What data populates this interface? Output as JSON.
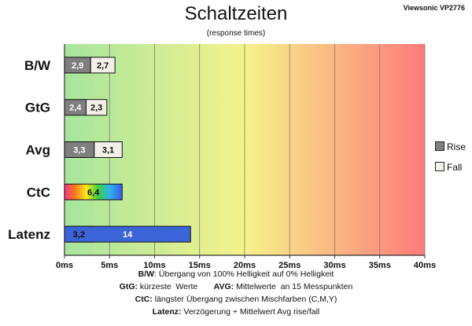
{
  "model": "Viewsonic VP2776",
  "chart_data": {
    "type": "bar",
    "orientation": "horizontal",
    "title": "Schaltzeiten",
    "subtitle": "(response times)",
    "categories": [
      "B/W",
      "GtG",
      "Avg",
      "CtC",
      "Latenz"
    ],
    "series": [
      {
        "name": "Rise",
        "values": [
          2.9,
          2.4,
          3.3,
          null,
          null
        ]
      },
      {
        "name": "Fall",
        "values": [
          2.7,
          2.3,
          3.1,
          null,
          3.2
        ]
      }
    ],
    "single_bars": [
      {
        "category": "CtC",
        "value": 6.4,
        "label": "6,4",
        "style": "rainbow"
      },
      {
        "category": "Latenz",
        "value": 14,
        "label": "14",
        "style": "blue"
      }
    ],
    "value_labels": {
      "Rise": [
        "2,9",
        "2,4",
        "3,3",
        "",
        ""
      ],
      "Fall": [
        "2,7",
        "2,3",
        "3,1",
        "",
        "3,2"
      ]
    },
    "xlim": [
      0,
      40
    ],
    "x_ticks": [
      0,
      5,
      10,
      15,
      20,
      25,
      30,
      35,
      40
    ],
    "x_tick_labels": [
      "0ms",
      "5ms",
      "10ms",
      "15ms",
      "20ms",
      "25ms",
      "30ms",
      "35ms",
      "40ms"
    ],
    "grid": true,
    "background": "green-yellow-red gradient",
    "legend_position": "right"
  },
  "colors": {
    "rise": "#7f7f7f",
    "fall": "#f2efe6",
    "latency": "#3a64d8",
    "gradient_start": "#a6e59e",
    "gradient_mid": "#f5f38a",
    "gradient_end": "#ff7a7a"
  },
  "footnotes": {
    "bw_key": "B/W",
    "bw_text": ":  Übergang von 100% Helligkeit auf 0% Helligkeit",
    "gtg_key": "GtG:",
    "gtg_text": " kürzeste  Werte       ",
    "avg_key": "AVG:",
    "avg_text": " Mittelwerte  an 15 Messpunkten",
    "ctc_key": "CtC:",
    "ctc_text": " längster Übergang  zwischen Mischfarben  (C,M,Y)",
    "lat_key": "Latenz:",
    "lat_text": " Verzögerung  + Mittelwert Avg rise/fall"
  }
}
